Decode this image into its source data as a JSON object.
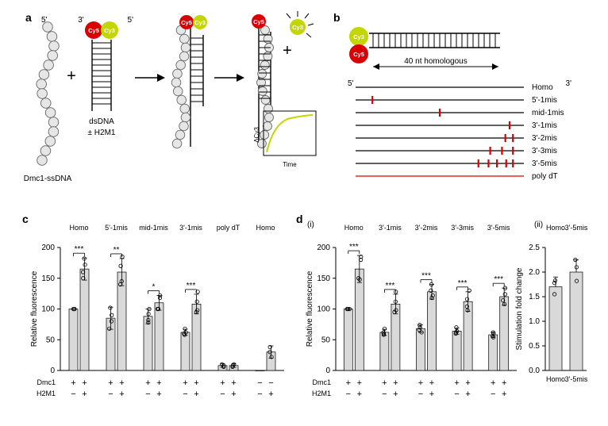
{
  "labels": {
    "a": "a",
    "b": "b",
    "c": "c",
    "d": "d",
    "five_prime": "5'",
    "three_prime": "3'",
    "cy3": "Cy3",
    "cy5": "Cy5",
    "dsdna": "dsDNA",
    "h2m1_pm": "± H2M1",
    "dmc1_ssdna": "Dmc1-ssDNA",
    "time": "Time",
    "delta_cy3": "ΔCy3",
    "homologous_len": "40 nt homologous",
    "panel_d_i": "(i)",
    "panel_d_ii": "(ii)",
    "relative_fluorescence": "Relative fluorescence",
    "stim_fold_change": "Stimulation fold change",
    "dmc1_row": "Dmc1",
    "h2m1_row": "H2M1"
  },
  "panel_b": {
    "lines": [
      {
        "name": "Homo",
        "marks": [],
        "color": "#000000"
      },
      {
        "name": "5'-1mis",
        "marks": [
          0.1
        ],
        "color": "#000000"
      },
      {
        "name": "mid-1mis",
        "marks": [
          0.5
        ],
        "color": "#000000"
      },
      {
        "name": "3'-1mis",
        "marks": [
          0.915
        ],
        "color": "#000000"
      },
      {
        "name": "3'-2mis",
        "marks": [
          0.89,
          0.935
        ],
        "color": "#000000"
      },
      {
        "name": "3'-3mis",
        "marks": [
          0.8,
          0.87,
          0.935
        ],
        "color": "#000000"
      },
      {
        "name": "3'-5mis",
        "marks": [
          0.73,
          0.79,
          0.84,
          0.895,
          0.935
        ],
        "color": "#000000"
      },
      {
        "name": "poly dT",
        "marks": [],
        "color": "#d90000"
      }
    ]
  },
  "panel_c": {
    "ylim": [
      0,
      200
    ],
    "ytick_step": 50,
    "groups": [
      "Homo",
      "5'-1mis",
      "mid-1mis",
      "3'-1mis",
      "poly dT",
      "Homo"
    ],
    "bars": [
      [
        100,
        165
      ],
      [
        85,
        160
      ],
      [
        88,
        110
      ],
      [
        62,
        108
      ],
      [
        8,
        8
      ],
      [
        0,
        30
      ]
    ],
    "errors": [
      [
        0,
        18
      ],
      [
        18,
        22
      ],
      [
        12,
        12
      ],
      [
        5,
        16
      ],
      [
        3,
        3
      ],
      [
        0,
        10
      ]
    ],
    "sig": [
      "***",
      "**",
      "*",
      "***",
      "",
      ""
    ],
    "points": [
      [
        [
          100,
          100,
          100
        ],
        [
          160,
          182,
          172,
          150
        ]
      ],
      [
        [
          68,
          90,
          102,
          80
        ],
        [
          145,
          185,
          170,
          140
        ]
      ],
      [
        [
          78,
          100,
          92,
          82
        ],
        [
          100,
          122,
          118,
          100
        ]
      ],
      [
        [
          58,
          68,
          62,
          60
        ],
        [
          95,
          128,
          112,
          98
        ]
      ],
      [
        [
          6,
          10,
          8
        ],
        [
          6,
          10,
          8
        ]
      ],
      [
        [],
        [
          22,
          38,
          30
        ]
      ]
    ],
    "dmc1": [
      "+",
      "+",
      "+",
      "+",
      "+",
      "+",
      "+",
      "+",
      "+",
      "+",
      "−",
      "−"
    ],
    "h2m1": [
      "−",
      "+",
      "−",
      "+",
      "−",
      "+",
      "−",
      "+",
      "−",
      "+",
      "−",
      "+"
    ]
  },
  "panel_d_i": {
    "ylim": [
      0,
      200
    ],
    "ytick_step": 50,
    "groups": [
      "Homo",
      "3'-1mis",
      "3'-2mis",
      "3'-3mis",
      "3'-5mis"
    ],
    "bars": [
      [
        100,
        165
      ],
      [
        62,
        108
      ],
      [
        68,
        128
      ],
      [
        64,
        112
      ],
      [
        58,
        120
      ]
    ],
    "errors": [
      [
        0,
        22
      ],
      [
        5,
        16
      ],
      [
        6,
        12
      ],
      [
        5,
        16
      ],
      [
        4,
        14
      ]
    ],
    "sig": [
      "***",
      "***",
      "***",
      "***",
      "***"
    ],
    "points": [
      [
        [
          100,
          100,
          100
        ],
        [
          150,
          180,
          185,
          148
        ]
      ],
      [
        [
          58,
          68,
          62,
          60
        ],
        [
          95,
          128,
          112,
          98
        ]
      ],
      [
        [
          62,
          74,
          70,
          66
        ],
        [
          118,
          140,
          130,
          122
        ]
      ],
      [
        [
          60,
          70,
          64,
          62
        ],
        [
          98,
          130,
          116,
          104
        ]
      ],
      [
        [
          54,
          62,
          60,
          56
        ],
        [
          108,
          134,
          124,
          114
        ]
      ]
    ],
    "dmc1": [
      "+",
      "+",
      "+",
      "+",
      "+",
      "+",
      "+",
      "+",
      "+",
      "+"
    ],
    "h2m1": [
      "−",
      "+",
      "−",
      "+",
      "−",
      "+",
      "−",
      "+",
      "−",
      "+"
    ]
  },
  "panel_d_ii": {
    "ylim": [
      0,
      2.5
    ],
    "ytick_step": 0.5,
    "groups": [
      "Homo",
      "3'-5mis"
    ],
    "bars": [
      1.7,
      2.0
    ],
    "errors": [
      0.2,
      0.25
    ],
    "points": [
      [
        1.55,
        1.78,
        1.83
      ],
      [
        1.82,
        2.1,
        2.25
      ]
    ]
  },
  "colors": {
    "bar": "#d9d9d9",
    "bar_stroke": "#000000",
    "cy3": "#c3d600",
    "cy5": "#d90000",
    "bead_fill": "#e6e6e6",
    "bead_stroke": "#666666"
  }
}
